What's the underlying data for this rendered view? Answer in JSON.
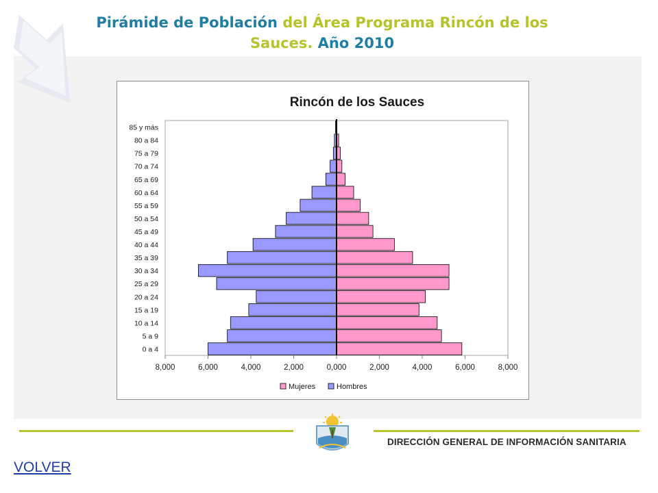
{
  "slide": {
    "title_part1": "Pirámide de Población",
    "title_part2": " del Área Programa Rincón de los",
    "title_part3": "Sauces.",
    "title_part4": " Año 2010"
  },
  "chart_data": {
    "type": "bar",
    "orientation": "horizontal-population-pyramid",
    "title": "Rincón de los Sauces",
    "categories": [
      "0 a 4",
      "5 a 9",
      "10 a 14",
      "15 a 19",
      "20 a 24",
      "25 a 29",
      "30 a 34",
      "35 a 39",
      "40 a 44",
      "45 a 49",
      "50 a 54",
      "55 a 59",
      "60 a 64",
      "65 a 69",
      "70 a 74",
      "75 a 79",
      "80 a 84",
      "85 y más"
    ],
    "series": [
      {
        "name": "Mujeres",
        "color": "#ff99cc",
        "values": [
          5850,
          4900,
          4700,
          3850,
          4150,
          5250,
          5250,
          3550,
          2700,
          1700,
          1500,
          1100,
          800,
          400,
          250,
          180,
          100,
          20
        ]
      },
      {
        "name": "Hombres",
        "color": "#9999ff",
        "values": [
          6000,
          5100,
          4950,
          4100,
          3750,
          5600,
          6450,
          5100,
          3900,
          2850,
          2350,
          1700,
          1150,
          500,
          300,
          150,
          100,
          50
        ]
      }
    ],
    "x_ticks": [
      "8,000",
      "6,000",
      "4,000",
      "2,000",
      "0,000",
      "2,000",
      "4,000",
      "6,000",
      "8,000"
    ],
    "xlim": [
      -8000,
      8000
    ],
    "grid": false,
    "legend": {
      "position": "bottom",
      "entries": [
        "Mujeres",
        "Hombres"
      ]
    }
  },
  "footer": {
    "org_name": "DIRECCIÓN GENERAL DE INFORMACIÓN SANITARIA",
    "volver_label": "VOLVER"
  },
  "colors": {
    "title_blue": "#1f7ea1",
    "title_green": "#b5c42a",
    "footer_line": "#b5c42a"
  }
}
